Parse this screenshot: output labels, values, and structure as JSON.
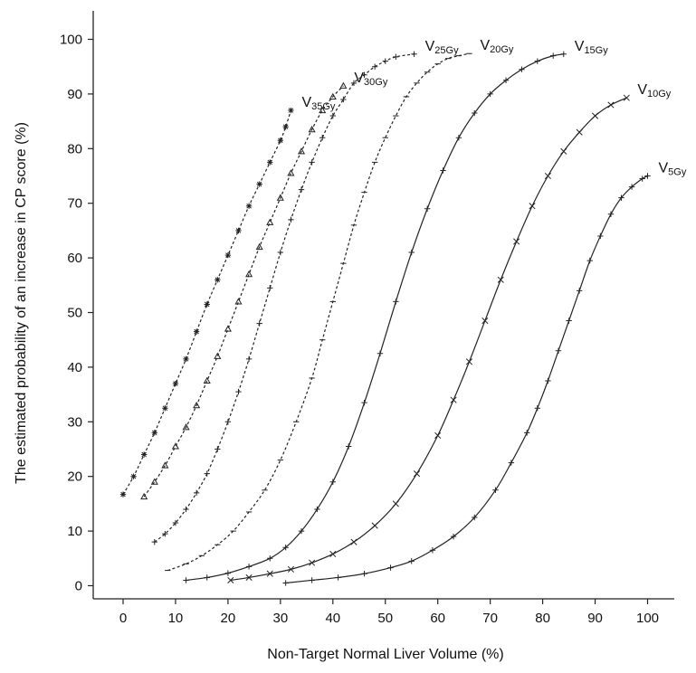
{
  "chart_data": {
    "type": "line",
    "title": "",
    "xlabel": "Non-Target Normal Liver Volume (%)",
    "ylabel": "The estimated probability of an increase in CP score (%)",
    "xlim": [
      -5,
      105
    ],
    "ylim": [
      -2,
      106
    ],
    "xticks": [
      0,
      10,
      20,
      30,
      40,
      50,
      60,
      70,
      80,
      90,
      100
    ],
    "yticks": [
      0,
      10,
      20,
      30,
      40,
      50,
      60,
      70,
      80,
      90,
      100
    ],
    "grid": false,
    "series": [
      {
        "id": "v35",
        "label_main": "V",
        "label_sub": "35Gy",
        "style": "dashed",
        "marker": "star",
        "points": [
          [
            0,
            16.7
          ],
          [
            2,
            20
          ],
          [
            4,
            24
          ],
          [
            6,
            28
          ],
          [
            8,
            32.5
          ],
          [
            10,
            37
          ],
          [
            12,
            41.5
          ],
          [
            14,
            46.5
          ],
          [
            16,
            51.5
          ],
          [
            18,
            56
          ],
          [
            20,
            60.5
          ],
          [
            22,
            65
          ],
          [
            24,
            69.5
          ],
          [
            26,
            73.5
          ],
          [
            28,
            77.5
          ],
          [
            30,
            81.5
          ],
          [
            31,
            84
          ],
          [
            32,
            87
          ]
        ]
      },
      {
        "id": "v30",
        "label_main": "V",
        "label_sub": "30Gy",
        "style": "dashed",
        "marker": "triangle",
        "points": [
          [
            4,
            16.3
          ],
          [
            6,
            19
          ],
          [
            8,
            22
          ],
          [
            10,
            25.5
          ],
          [
            12,
            29
          ],
          [
            14,
            33
          ],
          [
            16,
            37.5
          ],
          [
            18,
            42
          ],
          [
            20,
            47
          ],
          [
            22,
            52
          ],
          [
            24,
            57
          ],
          [
            26,
            62
          ],
          [
            28,
            66.5
          ],
          [
            30,
            71
          ],
          [
            32,
            75.5
          ],
          [
            34,
            79.5
          ],
          [
            36,
            83.5
          ],
          [
            38,
            87
          ],
          [
            40,
            89.5
          ],
          [
            42,
            91.5
          ]
        ]
      },
      {
        "id": "v25",
        "label_main": "V",
        "label_sub": "25Gy",
        "style": "dashed",
        "marker": "plus",
        "points": [
          [
            6,
            8
          ],
          [
            8,
            9.5
          ],
          [
            10,
            11.5
          ],
          [
            12,
            14
          ],
          [
            14,
            17
          ],
          [
            16,
            20.5
          ],
          [
            18,
            25
          ],
          [
            20,
            30
          ],
          [
            22,
            35.5
          ],
          [
            24,
            41.5
          ],
          [
            26,
            48
          ],
          [
            28,
            54.5
          ],
          [
            30,
            61
          ],
          [
            32,
            67
          ],
          [
            34,
            72.5
          ],
          [
            36,
            77.5
          ],
          [
            38,
            82
          ],
          [
            40,
            86
          ],
          [
            42,
            89
          ],
          [
            44,
            92
          ],
          [
            46,
            93.5
          ],
          [
            48,
            95
          ],
          [
            50,
            96
          ],
          [
            52,
            96.8
          ],
          [
            55.5,
            97.3
          ]
        ]
      },
      {
        "id": "v20",
        "label_main": "V",
        "label_sub": "20Gy",
        "style": "dashed",
        "marker": "dash",
        "points": [
          [
            8.5,
            2.8
          ],
          [
            12,
            4
          ],
          [
            15,
            5.5
          ],
          [
            18,
            7.5
          ],
          [
            21,
            10
          ],
          [
            24,
            13.5
          ],
          [
            27,
            17.5
          ],
          [
            30,
            23
          ],
          [
            33,
            30
          ],
          [
            36,
            38
          ],
          [
            38,
            45
          ],
          [
            40,
            52
          ],
          [
            42,
            59
          ],
          [
            44,
            66
          ],
          [
            46,
            72
          ],
          [
            48,
            77.5
          ],
          [
            50,
            82
          ],
          [
            52,
            86
          ],
          [
            54,
            89.5
          ],
          [
            56,
            92
          ],
          [
            58,
            94
          ],
          [
            60,
            95.5
          ],
          [
            62,
            96.5
          ],
          [
            64,
            97
          ],
          [
            66,
            97.4
          ]
        ]
      },
      {
        "id": "v15",
        "label_main": "V",
        "label_sub": "15Gy",
        "style": "solid",
        "marker": "plus",
        "points": [
          [
            12,
            1
          ],
          [
            16,
            1.5
          ],
          [
            20,
            2.3
          ],
          [
            24,
            3.5
          ],
          [
            28,
            5
          ],
          [
            31,
            7
          ],
          [
            34,
            10
          ],
          [
            37,
            14
          ],
          [
            40,
            19
          ],
          [
            43,
            25.5
          ],
          [
            46,
            33.5
          ],
          [
            49,
            42.5
          ],
          [
            52,
            52
          ],
          [
            55,
            61
          ],
          [
            58,
            69
          ],
          [
            61,
            76
          ],
          [
            64,
            82
          ],
          [
            67,
            86.5
          ],
          [
            70,
            90
          ],
          [
            73,
            92.5
          ],
          [
            76,
            94.5
          ],
          [
            79,
            96
          ],
          [
            82,
            97
          ],
          [
            84,
            97.3
          ]
        ]
      },
      {
        "id": "v10",
        "label_main": "V",
        "label_sub": "10Gy",
        "style": "solid",
        "marker": "x",
        "points": [
          [
            20.5,
            1
          ],
          [
            24,
            1.5
          ],
          [
            28,
            2.2
          ],
          [
            32,
            3
          ],
          [
            36,
            4.2
          ],
          [
            40,
            5.8
          ],
          [
            44,
            8
          ],
          [
            48,
            11
          ],
          [
            52,
            15
          ],
          [
            56,
            20.5
          ],
          [
            60,
            27.5
          ],
          [
            63,
            34
          ],
          [
            66,
            41
          ],
          [
            69,
            48.5
          ],
          [
            72,
            56
          ],
          [
            75,
            63
          ],
          [
            78,
            69.5
          ],
          [
            81,
            75
          ],
          [
            84,
            79.5
          ],
          [
            87,
            83
          ],
          [
            90,
            86
          ],
          [
            93,
            88
          ],
          [
            96,
            89.3
          ]
        ]
      },
      {
        "id": "v5",
        "label_main": "V",
        "label_sub": "5Gy",
        "style": "solid",
        "marker": "plus",
        "points": [
          [
            31,
            0.5
          ],
          [
            36,
            1
          ],
          [
            41,
            1.5
          ],
          [
            46,
            2.2
          ],
          [
            51,
            3.3
          ],
          [
            55,
            4.5
          ],
          [
            59,
            6.5
          ],
          [
            63,
            9
          ],
          [
            67,
            12.5
          ],
          [
            71,
            17.5
          ],
          [
            74,
            22.5
          ],
          [
            77,
            28
          ],
          [
            79,
            32.5
          ],
          [
            81,
            37.5
          ],
          [
            83,
            43
          ],
          [
            85,
            48.5
          ],
          [
            87,
            54
          ],
          [
            89,
            59.5
          ],
          [
            91,
            64
          ],
          [
            93,
            68
          ],
          [
            95,
            71
          ],
          [
            97,
            73
          ],
          [
            99,
            74.5
          ],
          [
            100,
            75
          ]
        ]
      }
    ]
  }
}
